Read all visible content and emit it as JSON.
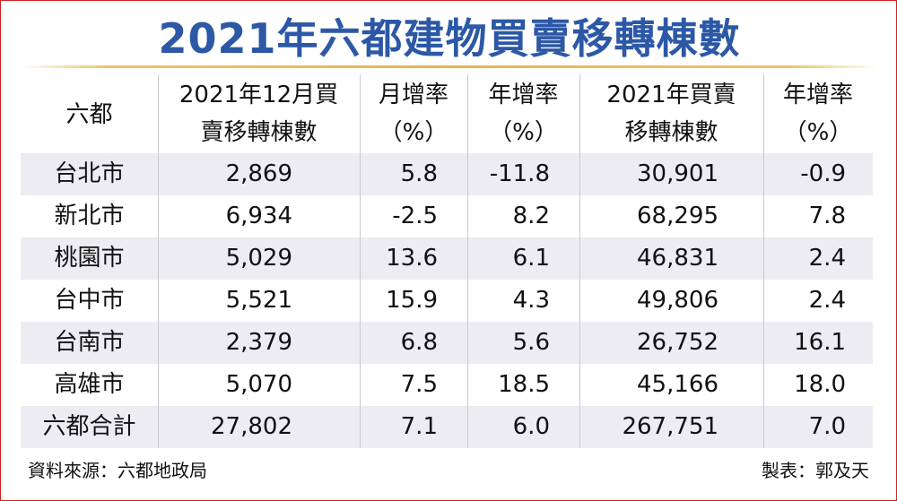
{
  "title": "2021年六都建物買賣移轉棟數",
  "table": {
    "header": [
      [
        "六都"
      ],
      [
        "2021年12月買",
        "賣移轉棟數"
      ],
      [
        "月增率",
        "（%）"
      ],
      [
        "年增率",
        "（%）"
      ],
      [
        "2021年買賣",
        "移轉棟數"
      ],
      [
        "年增率",
        "（%）"
      ]
    ],
    "rows": [
      [
        "台北市",
        "2,869",
        "5.8",
        "-11.8",
        "30,901",
        "-0.9"
      ],
      [
        "新北市",
        "6,934",
        "-2.5",
        "8.2",
        "68,295",
        "7.8"
      ],
      [
        "桃園市",
        "5,029",
        "13.6",
        "6.1",
        "46,831",
        "2.4"
      ],
      [
        "台中市",
        "5,521",
        "15.9",
        "4.3",
        "49,806",
        "2.4"
      ],
      [
        "台南市",
        "2,379",
        "6.8",
        "5.6",
        "26,752",
        "16.1"
      ],
      [
        "高雄市",
        "5,070",
        "7.5",
        "18.5",
        "45,166",
        "18.0"
      ],
      [
        "六都合計",
        "27,802",
        "7.1",
        "6.0",
        "267,751",
        "7.0"
      ]
    ]
  },
  "source": "資料來源：六都地政局",
  "credit": "製表：郭及天"
}
